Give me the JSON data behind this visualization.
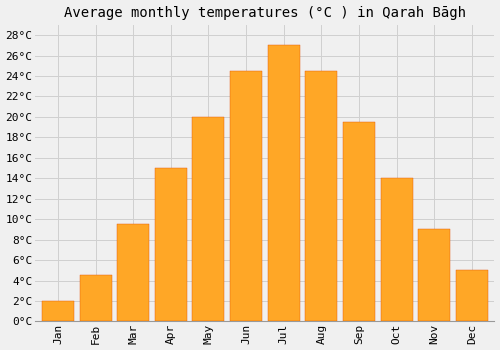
{
  "title": "Average monthly temperatures (°C ) in Qarah Bāgh",
  "months": [
    "Jan",
    "Feb",
    "Mar",
    "Apr",
    "May",
    "Jun",
    "Jul",
    "Aug",
    "Sep",
    "Oct",
    "Nov",
    "Dec"
  ],
  "values": [
    2,
    4.5,
    9.5,
    15,
    20,
    24.5,
    27,
    24.5,
    19.5,
    14,
    9,
    5
  ],
  "bar_color": "#FFA726",
  "bar_edge_color": "#E65100",
  "ylim": [
    0,
    29
  ],
  "yticks": [
    0,
    2,
    4,
    6,
    8,
    10,
    12,
    14,
    16,
    18,
    20,
    22,
    24,
    26,
    28
  ],
  "ytick_labels": [
    "0°C",
    "2°C",
    "4°C",
    "6°C",
    "8°C",
    "10°C",
    "12°C",
    "14°C",
    "16°C",
    "18°C",
    "20°C",
    "22°C",
    "24°C",
    "26°C",
    "28°C"
  ],
  "bg_color": "#f0f0f0",
  "grid_color": "#d0d0d0",
  "title_fontsize": 10,
  "tick_fontsize": 8,
  "bar_width": 0.85
}
